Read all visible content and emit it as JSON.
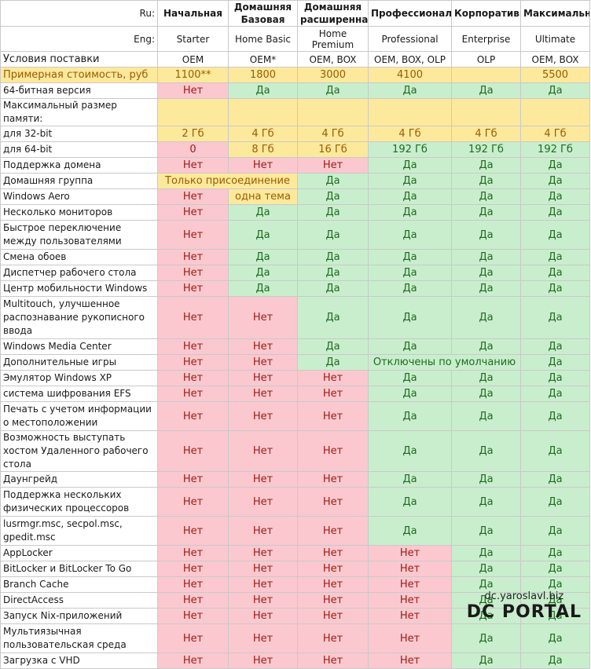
{
  "header": {
    "ru_key": "Ru:",
    "eng_key": "Eng:",
    "editions_ru": [
      "Начальная",
      "Домашняя Базовая",
      "Домашняя расширенная",
      "Профессиональная",
      "Корпоративная",
      "Максимальная"
    ],
    "editions_en": [
      "Starter",
      "Home Basic",
      "Home Premium",
      "Professional",
      "Enterprise",
      "Ultimate"
    ]
  },
  "rows": [
    {
      "label": "Условия поставки",
      "big": true,
      "cells": [
        {
          "t": "OEM",
          "c": "white"
        },
        {
          "t": "OEM*",
          "c": "white"
        },
        {
          "t": "OEM, BOX",
          "c": "white"
        },
        {
          "t": "OEM, BOX, OLP",
          "c": "white"
        },
        {
          "t": "OLP",
          "c": "white"
        },
        {
          "t": "OEM, BOX",
          "c": "white"
        }
      ]
    },
    {
      "label": "Примерная стоимость, руб",
      "big": true,
      "labelColor": "yellow",
      "cells": [
        {
          "t": "1100**",
          "c": "yellow"
        },
        {
          "t": "1800",
          "c": "yellow"
        },
        {
          "t": "3000",
          "c": "yellow"
        },
        {
          "t": "4100",
          "c": "yellow"
        },
        {
          "t": "",
          "c": "yellow"
        },
        {
          "t": "5500",
          "c": "yellow"
        }
      ]
    },
    {
      "label": "64-битная версия",
      "cells": [
        {
          "t": "Нет",
          "c": "red"
        },
        {
          "t": "Да",
          "c": "green"
        },
        {
          "t": "Да",
          "c": "green"
        },
        {
          "t": "Да",
          "c": "green"
        },
        {
          "t": "Да",
          "c": "green"
        },
        {
          "t": "Да",
          "c": "green"
        }
      ]
    },
    {
      "label": "Максимальный размер памяти:",
      "cells": [
        {
          "t": "",
          "c": "yellow"
        },
        {
          "t": "",
          "c": "yellow"
        },
        {
          "t": "",
          "c": "yellow"
        },
        {
          "t": "",
          "c": "yellow"
        },
        {
          "t": "",
          "c": "yellow"
        },
        {
          "t": "",
          "c": "yellow"
        }
      ]
    },
    {
      "label": "для 32-bit",
      "cells": [
        {
          "t": "2 Гб",
          "c": "yellow"
        },
        {
          "t": "4 Гб",
          "c": "yellow"
        },
        {
          "t": "4 Гб",
          "c": "yellow"
        },
        {
          "t": "4 Гб",
          "c": "yellow"
        },
        {
          "t": "4 Гб",
          "c": "yellow"
        },
        {
          "t": "4 Гб",
          "c": "yellow"
        }
      ]
    },
    {
      "label": "для 64-bit",
      "cells": [
        {
          "t": "0",
          "c": "red"
        },
        {
          "t": "8 Гб",
          "c": "yellow"
        },
        {
          "t": "16 Гб",
          "c": "yellow"
        },
        {
          "t": "192 Гб",
          "c": "green"
        },
        {
          "t": "192 Гб",
          "c": "green"
        },
        {
          "t": "192 Гб",
          "c": "green"
        }
      ]
    },
    {
      "label": "Поддержка домена",
      "cells": [
        {
          "t": "Нет",
          "c": "red"
        },
        {
          "t": "Нет",
          "c": "red"
        },
        {
          "t": "Нет",
          "c": "red"
        },
        {
          "t": "Да",
          "c": "green"
        },
        {
          "t": "Да",
          "c": "green"
        },
        {
          "t": "Да",
          "c": "green"
        }
      ]
    },
    {
      "label": "Домашняя группа",
      "cells": [
        {
          "t": "Только присоединение",
          "c": "yellow",
          "span": 2
        },
        {
          "t": "Да",
          "c": "green"
        },
        {
          "t": "Да",
          "c": "green"
        },
        {
          "t": "Да",
          "c": "green"
        },
        {
          "t": "Да",
          "c": "green"
        }
      ]
    },
    {
      "label": "Windows Aero",
      "cells": [
        {
          "t": "Нет",
          "c": "red"
        },
        {
          "t": "одна тема",
          "c": "yellow"
        },
        {
          "t": "Да",
          "c": "green"
        },
        {
          "t": "Да",
          "c": "green"
        },
        {
          "t": "Да",
          "c": "green"
        },
        {
          "t": "Да",
          "c": "green"
        }
      ]
    },
    {
      "label": "Несколько мониторов",
      "cells": [
        {
          "t": "Нет",
          "c": "red"
        },
        {
          "t": "Да",
          "c": "green"
        },
        {
          "t": "Да",
          "c": "green"
        },
        {
          "t": "Да",
          "c": "green"
        },
        {
          "t": "Да",
          "c": "green"
        },
        {
          "t": "Да",
          "c": "green"
        }
      ]
    },
    {
      "label": "Быстрое переключение между пользователями",
      "tall": 2,
      "cells": [
        {
          "t": "Нет",
          "c": "red"
        },
        {
          "t": "Да",
          "c": "green"
        },
        {
          "t": "Да",
          "c": "green"
        },
        {
          "t": "Да",
          "c": "green"
        },
        {
          "t": "Да",
          "c": "green"
        },
        {
          "t": "Да",
          "c": "green"
        }
      ]
    },
    {
      "label": "Смена обоев",
      "cells": [
        {
          "t": "Нет",
          "c": "red"
        },
        {
          "t": "Да",
          "c": "green"
        },
        {
          "t": "Да",
          "c": "green"
        },
        {
          "t": "Да",
          "c": "green"
        },
        {
          "t": "Да",
          "c": "green"
        },
        {
          "t": "Да",
          "c": "green"
        }
      ]
    },
    {
      "label": "Диспетчер рабочего стола",
      "cells": [
        {
          "t": "Нет",
          "c": "red"
        },
        {
          "t": "Да",
          "c": "green"
        },
        {
          "t": "Да",
          "c": "green"
        },
        {
          "t": "Да",
          "c": "green"
        },
        {
          "t": "Да",
          "c": "green"
        },
        {
          "t": "Да",
          "c": "green"
        }
      ]
    },
    {
      "label": "Центр мобильности Windows",
      "cells": [
        {
          "t": "Нет",
          "c": "red"
        },
        {
          "t": "Да",
          "c": "green"
        },
        {
          "t": "Да",
          "c": "green"
        },
        {
          "t": "Да",
          "c": "green"
        },
        {
          "t": "Да",
          "c": "green"
        },
        {
          "t": "Да",
          "c": "green"
        }
      ]
    },
    {
      "label": "Multitouch, улучшенное распознавание рукописного ввода",
      "tall": 3,
      "cells": [
        {
          "t": "Нет",
          "c": "red"
        },
        {
          "t": "Нет",
          "c": "red"
        },
        {
          "t": "Да",
          "c": "green"
        },
        {
          "t": "Да",
          "c": "green"
        },
        {
          "t": "Да",
          "c": "green"
        },
        {
          "t": "Да",
          "c": "green"
        }
      ]
    },
    {
      "label": "Windows Media Center",
      "cells": [
        {
          "t": "Нет",
          "c": "red"
        },
        {
          "t": "Нет",
          "c": "red"
        },
        {
          "t": "Да",
          "c": "green"
        },
        {
          "t": "Да",
          "c": "green"
        },
        {
          "t": "Да",
          "c": "green"
        },
        {
          "t": "Да",
          "c": "green"
        }
      ]
    },
    {
      "label": "Дополнительные игры",
      "cells": [
        {
          "t": "Нет",
          "c": "red"
        },
        {
          "t": "Нет",
          "c": "red"
        },
        {
          "t": "Да",
          "c": "green"
        },
        {
          "t": "Отключены по умолчанию",
          "c": "green",
          "span": 2
        },
        {
          "t": "Да",
          "c": "green"
        }
      ]
    },
    {
      "label": "Эмулятор Windows XP",
      "cells": [
        {
          "t": "Нет",
          "c": "red"
        },
        {
          "t": "Нет",
          "c": "red"
        },
        {
          "t": "Нет",
          "c": "red"
        },
        {
          "t": "Да",
          "c": "green"
        },
        {
          "t": "Да",
          "c": "green"
        },
        {
          "t": "Да",
          "c": "green"
        }
      ]
    },
    {
      "label": "система шифрования EFS",
      "cells": [
        {
          "t": "Нет",
          "c": "red"
        },
        {
          "t": "Нет",
          "c": "red"
        },
        {
          "t": "Нет",
          "c": "red"
        },
        {
          "t": "Да",
          "c": "green"
        },
        {
          "t": "Да",
          "c": "green"
        },
        {
          "t": "Да",
          "c": "green"
        }
      ]
    },
    {
      "label": "Печать с учетом информации о местоположении",
      "tall": 2,
      "cells": [
        {
          "t": "Нет",
          "c": "red"
        },
        {
          "t": "Нет",
          "c": "red"
        },
        {
          "t": "Нет",
          "c": "red"
        },
        {
          "t": "Да",
          "c": "green"
        },
        {
          "t": "Да",
          "c": "green"
        },
        {
          "t": "Да",
          "c": "green"
        }
      ]
    },
    {
      "label": "Возможность выступать хостом Удаленного рабочего стола",
      "tall": 2,
      "cells": [
        {
          "t": "Нет",
          "c": "red"
        },
        {
          "t": "Нет",
          "c": "red"
        },
        {
          "t": "Нет",
          "c": "red"
        },
        {
          "t": "Да",
          "c": "green"
        },
        {
          "t": "Да",
          "c": "green"
        },
        {
          "t": "Да",
          "c": "green"
        }
      ]
    },
    {
      "label": "Даунгрейд",
      "cells": [
        {
          "t": "Нет",
          "c": "red"
        },
        {
          "t": "Нет",
          "c": "red"
        },
        {
          "t": "Нет",
          "c": "red"
        },
        {
          "t": "Да",
          "c": "green"
        },
        {
          "t": "Да",
          "c": "green"
        },
        {
          "t": "Да",
          "c": "green"
        }
      ]
    },
    {
      "label": "Поддержка нескольких физических процессоров",
      "tall": 2,
      "cells": [
        {
          "t": "Нет",
          "c": "red"
        },
        {
          "t": "Нет",
          "c": "red"
        },
        {
          "t": "Нет",
          "c": "red"
        },
        {
          "t": "Да",
          "c": "green"
        },
        {
          "t": "Да",
          "c": "green"
        },
        {
          "t": "Да",
          "c": "green"
        }
      ]
    },
    {
      "label": "lusrmgr.msc, secpol.msc, gpedit.msc",
      "tall": 2,
      "cells": [
        {
          "t": "Нет",
          "c": "red"
        },
        {
          "t": "Нет",
          "c": "red"
        },
        {
          "t": "Нет",
          "c": "red"
        },
        {
          "t": "Да",
          "c": "green"
        },
        {
          "t": "Да",
          "c": "green"
        },
        {
          "t": "Да",
          "c": "green"
        }
      ]
    },
    {
      "label": "AppLocker",
      "cells": [
        {
          "t": "Нет",
          "c": "red"
        },
        {
          "t": "Нет",
          "c": "red"
        },
        {
          "t": "Нет",
          "c": "red"
        },
        {
          "t": "Нет",
          "c": "red"
        },
        {
          "t": "Да",
          "c": "green"
        },
        {
          "t": "Да",
          "c": "green"
        }
      ]
    },
    {
      "label": "BitLocker и BitLocker To Go",
      "cells": [
        {
          "t": "Нет",
          "c": "red"
        },
        {
          "t": "Нет",
          "c": "red"
        },
        {
          "t": "Нет",
          "c": "red"
        },
        {
          "t": "Нет",
          "c": "red"
        },
        {
          "t": "Да",
          "c": "green"
        },
        {
          "t": "Да",
          "c": "green"
        }
      ]
    },
    {
      "label": "Branch Cache",
      "cells": [
        {
          "t": "Нет",
          "c": "red"
        },
        {
          "t": "Нет",
          "c": "red"
        },
        {
          "t": "Нет",
          "c": "red"
        },
        {
          "t": "Нет",
          "c": "red"
        },
        {
          "t": "Да",
          "c": "green"
        },
        {
          "t": "Да",
          "c": "green"
        }
      ]
    },
    {
      "label": "DirectAccess",
      "cells": [
        {
          "t": "Нет",
          "c": "red"
        },
        {
          "t": "Нет",
          "c": "red"
        },
        {
          "t": "Нет",
          "c": "red"
        },
        {
          "t": "Нет",
          "c": "red"
        },
        {
          "t": "Да",
          "c": "green"
        },
        {
          "t": "Да",
          "c": "green"
        }
      ]
    },
    {
      "label": "Запуск Nix-приложений",
      "cells": [
        {
          "t": "Нет",
          "c": "red"
        },
        {
          "t": "Нет",
          "c": "red"
        },
        {
          "t": "Нет",
          "c": "red"
        },
        {
          "t": "Нет",
          "c": "red"
        },
        {
          "t": "Да",
          "c": "green"
        },
        {
          "t": "Да",
          "c": "green"
        }
      ]
    },
    {
      "label": "Мультиязычная пользовательская среда",
      "tall": 2,
      "cells": [
        {
          "t": "Нет",
          "c": "red"
        },
        {
          "t": "Нет",
          "c": "red"
        },
        {
          "t": "Нет",
          "c": "red"
        },
        {
          "t": "Нет",
          "c": "red"
        },
        {
          "t": "Да",
          "c": "green"
        },
        {
          "t": "Да",
          "c": "green"
        }
      ]
    },
    {
      "label": "Загрузка с VHD",
      "cells": [
        {
          "t": "Нет",
          "c": "red"
        },
        {
          "t": "Нет",
          "c": "red"
        },
        {
          "t": "Нет",
          "c": "red"
        },
        {
          "t": "Нет",
          "c": "red"
        },
        {
          "t": "Да",
          "c": "green"
        },
        {
          "t": "Да",
          "c": "green"
        }
      ]
    }
  ],
  "watermark": {
    "url": "dc.yaroslavl.biz",
    "logo": "DC PORTAL"
  },
  "colors": {
    "red_bg": "#fbc8cf",
    "red_text": "#9c1b10",
    "green_bg": "#c9eecd",
    "green_text": "#1f6a1f",
    "yellow_bg": "#fde99c",
    "yellow_text": "#9c5b00"
  }
}
